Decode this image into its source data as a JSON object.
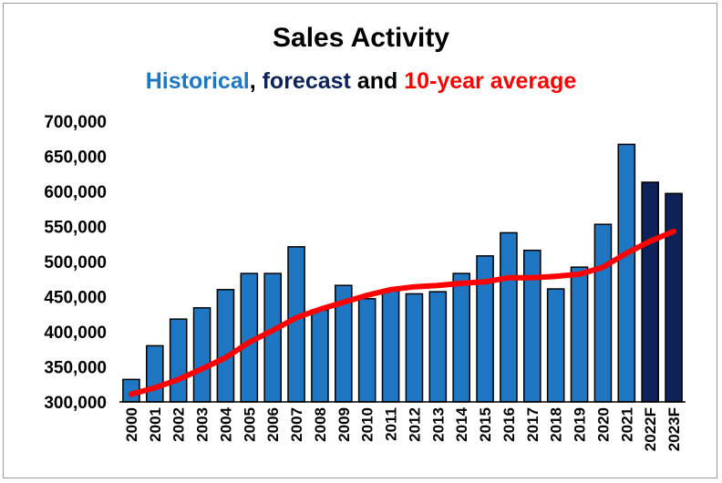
{
  "chart_data": {
    "type": "bar",
    "title": "Sales Activity",
    "subtitle": {
      "parts": [
        {
          "text": "Historical",
          "color": "#1f77c4"
        },
        {
          "text": ", ",
          "color": "#000000"
        },
        {
          "text": "forecast",
          "color": "#0c2258"
        },
        {
          "text": " and ",
          "color": "#000000"
        },
        {
          "text": "10-year average",
          "color": "#ff0000"
        }
      ]
    },
    "categories": [
      "2000",
      "2001",
      "2002",
      "2003",
      "2004",
      "2005",
      "2006",
      "2007",
      "2008",
      "2009",
      "2010",
      "2011",
      "2012",
      "2013",
      "2014",
      "2015",
      "2016",
      "2017",
      "2018",
      "2019",
      "2020",
      "2021",
      "2022F",
      "2023F"
    ],
    "series": [
      {
        "type": "bar",
        "values": [
          332000,
          380000,
          418000,
          434000,
          460000,
          483000,
          483000,
          521000,
          431000,
          466000,
          447000,
          458000,
          454000,
          457000,
          483000,
          508000,
          541000,
          516000,
          461000,
          492000,
          553000,
          667000,
          613000,
          597000
        ],
        "colors": [
          "#1f77c4",
          "#1f77c4",
          "#1f77c4",
          "#1f77c4",
          "#1f77c4",
          "#1f77c4",
          "#1f77c4",
          "#1f77c4",
          "#1f77c4",
          "#1f77c4",
          "#1f77c4",
          "#1f77c4",
          "#1f77c4",
          "#1f77c4",
          "#1f77c4",
          "#1f77c4",
          "#1f77c4",
          "#1f77c4",
          "#1f77c4",
          "#1f77c4",
          "#1f77c4",
          "#1f77c4",
          "#0c2258",
          "#0c2258"
        ]
      },
      {
        "type": "line",
        "color": "#ff0000",
        "values": [
          311000,
          320000,
          332000,
          347000,
          363000,
          385000,
          402000,
          420000,
          432000,
          442000,
          452000,
          460000,
          464000,
          466000,
          469000,
          471000,
          477000,
          477000,
          479000,
          482000,
          492000,
          512000,
          529000,
          543000
        ]
      }
    ],
    "ylim": [
      300000,
      700000
    ],
    "yticks": [
      300000,
      350000,
      400000,
      450000,
      500000,
      550000,
      600000,
      650000,
      700000
    ],
    "ytick_labels": [
      "300,000",
      "350,000",
      "400,000",
      "450,000",
      "500,000",
      "550,000",
      "600,000",
      "650,000",
      "700,000"
    ],
    "grid": false,
    "legend": "none"
  }
}
